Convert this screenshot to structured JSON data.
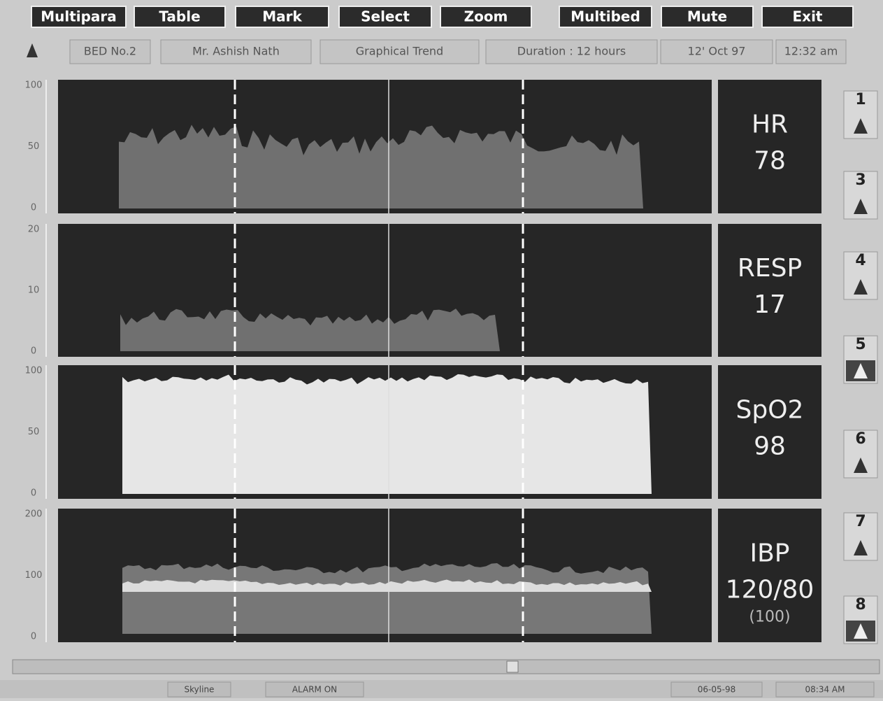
{
  "menu": [
    "Multipara",
    "Table",
    "Mark",
    "Select",
    "Zoom",
    "Multibed",
    "Mute",
    "Exit"
  ],
  "info": [
    "BED No.2",
    "Mr. Ashish Nath",
    "Graphical Trend",
    "Duration : 12 hours",
    "12' Oct 97",
    "12:32 am"
  ],
  "panels": [
    {
      "label": "HR",
      "value": "78",
      "axis": [
        "100",
        "50",
        "0"
      ]
    },
    {
      "label": "RESP",
      "value": "17",
      "axis": [
        "20",
        "10",
        "0"
      ]
    },
    {
      "label": "SpO2",
      "value": "98",
      "axis": [
        "100",
        "50",
        "0"
      ]
    },
    {
      "label": "IBP",
      "value": "120/80",
      "sub": "(100)",
      "axis": [
        "200",
        "100",
        "0"
      ]
    }
  ],
  "side_buttons": [
    "1",
    "3",
    "4",
    "5",
    "6",
    "7",
    "8"
  ],
  "status": [
    "Skyline",
    "ALARM ON",
    "06-05-98",
    "08:34 AM"
  ]
}
